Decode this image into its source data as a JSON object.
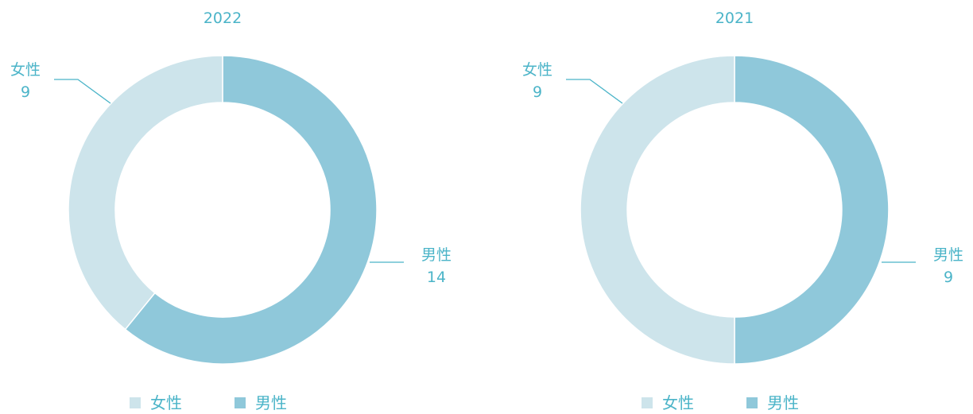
{
  "colors": {
    "female": "#CDE4EB",
    "male": "#8FC8DA",
    "text": "#4BB4C8",
    "separator": "#ffffff"
  },
  "chart_data": [
    {
      "type": "pie",
      "title": "2022",
      "categories": [
        "女性",
        "男性"
      ],
      "values": [
        9,
        14
      ],
      "donut": true,
      "legend": "bottom"
    },
    {
      "type": "pie",
      "title": "2021",
      "categories": [
        "女性",
        "男性"
      ],
      "values": [
        9,
        9
      ],
      "donut": true,
      "legend": "bottom"
    }
  ]
}
